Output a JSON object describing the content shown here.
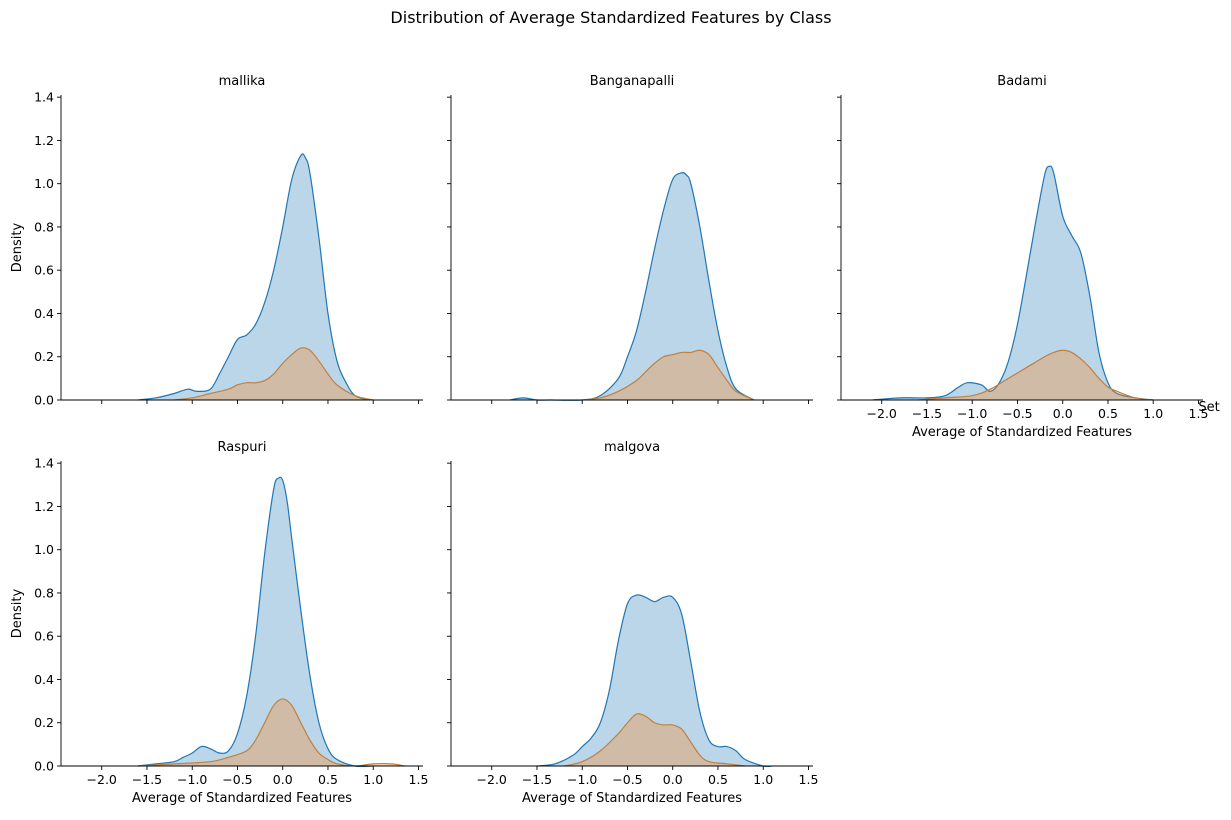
{
  "chart_data": {
    "type": "area",
    "title": "Distribution of Average Standardized Features by Class",
    "legend_title": "Set",
    "legend_placement": "right",
    "xlabel": "Average of Standardized Features",
    "ylabel": "Density",
    "xlim": [
      -2.45,
      1.55
    ],
    "ylim": [
      0,
      1.41
    ],
    "x_ticks": [
      -2.0,
      -1.5,
      -1.0,
      -0.5,
      0.0,
      0.5,
      1.0,
      1.5
    ],
    "y_ticks": [
      0.0,
      0.2,
      0.4,
      0.6,
      0.8,
      1.0,
      1.2,
      1.4
    ],
    "grid": false,
    "series_colors": [
      "#1f77b4",
      "#ff7f0e"
    ],
    "panels": [
      {
        "title": "mallika",
        "series": [
          {
            "x": [
              -1.6,
              -1.4,
              -1.2,
              -1.05,
              -0.95,
              -0.8,
              -0.7,
              -0.6,
              -0.5,
              -0.4,
              -0.3,
              -0.2,
              -0.1,
              0.0,
              0.1,
              0.2,
              0.25,
              0.3,
              0.4,
              0.5,
              0.6,
              0.7,
              0.8,
              0.95
            ],
            "y": [
              0.0,
              0.01,
              0.03,
              0.05,
              0.04,
              0.05,
              0.12,
              0.2,
              0.28,
              0.3,
              0.35,
              0.45,
              0.6,
              0.8,
              1.02,
              1.13,
              1.12,
              1.05,
              0.75,
              0.4,
              0.18,
              0.08,
              0.02,
              0.0
            ]
          },
          {
            "x": [
              -1.2,
              -1.0,
              -0.8,
              -0.6,
              -0.5,
              -0.4,
              -0.3,
              -0.2,
              -0.1,
              0.0,
              0.1,
              0.2,
              0.3,
              0.4,
              0.5,
              0.6,
              0.8,
              1.0
            ],
            "y": [
              0.0,
              0.01,
              0.03,
              0.05,
              0.07,
              0.08,
              0.08,
              0.09,
              0.12,
              0.17,
              0.21,
              0.24,
              0.23,
              0.18,
              0.12,
              0.07,
              0.02,
              0.0
            ]
          }
        ]
      },
      {
        "title": "Banganapalli",
        "series": [
          {
            "x": [
              -1.8,
              -1.65,
              -1.5,
              -1.35,
              -1.0,
              -0.8,
              -0.6,
              -0.5,
              -0.4,
              -0.3,
              -0.2,
              -0.1,
              0.0,
              0.1,
              0.15,
              0.2,
              0.3,
              0.4,
              0.5,
              0.6,
              0.7,
              0.9
            ],
            "y": [
              0.0,
              0.01,
              0.0,
              0.0,
              0.0,
              0.02,
              0.1,
              0.2,
              0.32,
              0.5,
              0.7,
              0.88,
              1.02,
              1.05,
              1.04,
              1.0,
              0.8,
              0.55,
              0.32,
              0.15,
              0.05,
              0.0
            ]
          },
          {
            "x": [
              -1.0,
              -0.8,
              -0.6,
              -0.4,
              -0.3,
              -0.2,
              -0.1,
              0.0,
              0.1,
              0.2,
              0.3,
              0.4,
              0.5,
              0.6,
              0.7,
              0.9
            ],
            "y": [
              0.0,
              0.01,
              0.04,
              0.09,
              0.13,
              0.17,
              0.2,
              0.21,
              0.22,
              0.22,
              0.23,
              0.21,
              0.15,
              0.09,
              0.04,
              0.0
            ]
          }
        ]
      },
      {
        "title": "Badami",
        "series": [
          {
            "x": [
              -2.1,
              -1.8,
              -1.5,
              -1.3,
              -1.15,
              -1.05,
              -0.9,
              -0.8,
              -0.7,
              -0.6,
              -0.5,
              -0.4,
              -0.3,
              -0.2,
              -0.15,
              -0.1,
              0.0,
              0.1,
              0.2,
              0.3,
              0.4,
              0.5,
              0.6,
              0.8,
              1.0
            ],
            "y": [
              0.0,
              0.01,
              0.01,
              0.02,
              0.06,
              0.08,
              0.07,
              0.04,
              0.08,
              0.18,
              0.35,
              0.58,
              0.82,
              1.04,
              1.08,
              1.05,
              0.85,
              0.76,
              0.68,
              0.48,
              0.22,
              0.08,
              0.03,
              0.01,
              0.0
            ]
          },
          {
            "x": [
              -1.6,
              -1.3,
              -1.0,
              -0.8,
              -0.6,
              -0.4,
              -0.2,
              -0.1,
              0.0,
              0.1,
              0.2,
              0.3,
              0.4,
              0.5,
              0.6,
              0.8,
              1.0
            ],
            "y": [
              0.0,
              0.01,
              0.02,
              0.05,
              0.1,
              0.15,
              0.2,
              0.22,
              0.23,
              0.22,
              0.19,
              0.15,
              0.1,
              0.06,
              0.04,
              0.01,
              0.0
            ]
          }
        ]
      },
      {
        "title": "Raspuri",
        "series": [
          {
            "x": [
              -1.6,
              -1.4,
              -1.2,
              -1.1,
              -1.0,
              -0.9,
              -0.8,
              -0.7,
              -0.6,
              -0.5,
              -0.4,
              -0.3,
              -0.2,
              -0.1,
              -0.05,
              0.0,
              0.05,
              0.1,
              0.2,
              0.3,
              0.4,
              0.5,
              0.6,
              0.8,
              1.0
            ],
            "y": [
              0.0,
              0.01,
              0.02,
              0.04,
              0.06,
              0.09,
              0.08,
              0.06,
              0.07,
              0.15,
              0.32,
              0.6,
              0.98,
              1.28,
              1.33,
              1.32,
              1.22,
              1.05,
              0.72,
              0.42,
              0.2,
              0.08,
              0.03,
              0.0,
              0.0
            ]
          },
          {
            "x": [
              -1.6,
              -1.2,
              -0.8,
              -0.6,
              -0.4,
              -0.3,
              -0.2,
              -0.1,
              0.0,
              0.1,
              0.2,
              0.3,
              0.4,
              0.5,
              0.6,
              0.8,
              1.0,
              1.2,
              1.35
            ],
            "y": [
              0.0,
              0.01,
              0.02,
              0.04,
              0.07,
              0.12,
              0.2,
              0.28,
              0.31,
              0.28,
              0.2,
              0.12,
              0.06,
              0.03,
              0.01,
              0.0,
              0.01,
              0.01,
              0.0
            ]
          }
        ]
      },
      {
        "title": "malgova",
        "series": [
          {
            "x": [
              -1.5,
              -1.3,
              -1.1,
              -1.0,
              -0.9,
              -0.8,
              -0.7,
              -0.6,
              -0.5,
              -0.4,
              -0.3,
              -0.2,
              -0.1,
              0.0,
              0.1,
              0.2,
              0.3,
              0.4,
              0.5,
              0.6,
              0.7,
              0.8,
              1.0,
              1.1
            ],
            "y": [
              0.0,
              0.01,
              0.05,
              0.09,
              0.13,
              0.2,
              0.35,
              0.58,
              0.75,
              0.79,
              0.78,
              0.76,
              0.78,
              0.78,
              0.7,
              0.48,
              0.25,
              0.12,
              0.09,
              0.09,
              0.07,
              0.03,
              0.0,
              0.0
            ]
          },
          {
            "x": [
              -1.2,
              -1.0,
              -0.8,
              -0.6,
              -0.5,
              -0.4,
              -0.3,
              -0.2,
              -0.1,
              0.0,
              0.1,
              0.2,
              0.3,
              0.4,
              0.6,
              0.8
            ],
            "y": [
              0.0,
              0.02,
              0.07,
              0.15,
              0.2,
              0.24,
              0.23,
              0.2,
              0.19,
              0.19,
              0.17,
              0.11,
              0.05,
              0.02,
              0.01,
              0.0
            ]
          }
        ]
      }
    ]
  }
}
